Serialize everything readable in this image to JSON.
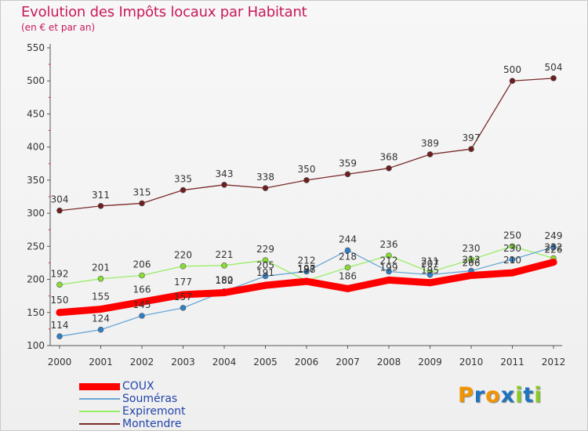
{
  "chart_data": {
    "type": "line",
    "title": "Evolution des Impôts locaux par Habitant",
    "subtitle": "(en € et par an)",
    "xlabel": "",
    "ylabel": "",
    "categories": [
      "2000",
      "2001",
      "2002",
      "2003",
      "2004",
      "2005",
      "2006",
      "2007",
      "2008",
      "2009",
      "2010",
      "2011",
      "2012"
    ],
    "ylim": [
      100,
      550
    ],
    "yticks": [
      100,
      150,
      200,
      250,
      300,
      350,
      400,
      450,
      500,
      550
    ],
    "grid": false,
    "legend_position": "bottom-left",
    "series": [
      {
        "name": "COUX",
        "color": "#ff0000",
        "point_color": "#ff0000",
        "values": [
          150,
          155,
          166,
          177,
          180,
          191,
          197,
          186,
          199,
          195,
          206,
          210,
          226
        ]
      },
      {
        "name": "Souméras",
        "color": "#6aa7d6",
        "point_color": "#2f7fc4",
        "values": [
          114,
          124,
          145,
          157,
          182,
          205,
          212,
          244,
          212,
          207,
          213,
          230,
          249
        ]
      },
      {
        "name": "Expiremont",
        "color": "#99ee66",
        "point_color": "#88dd33",
        "values": [
          192,
          201,
          206,
          220,
          221,
          229,
          198,
          218,
          236,
          211,
          230,
          250,
          232
        ]
      },
      {
        "name": "Montendre",
        "color": "#7a2a2a",
        "point_color": "#6e1e1e",
        "values": [
          304,
          311,
          315,
          335,
          343,
          338,
          350,
          359,
          368,
          389,
          397,
          500,
          504
        ]
      }
    ]
  },
  "logo": {
    "text": "Proxiti",
    "letter_colors": [
      "#f29400",
      "#1e73be",
      "#f29400",
      "#1e73be",
      "#88cc22",
      "#1e73be",
      "#88cc22"
    ]
  }
}
